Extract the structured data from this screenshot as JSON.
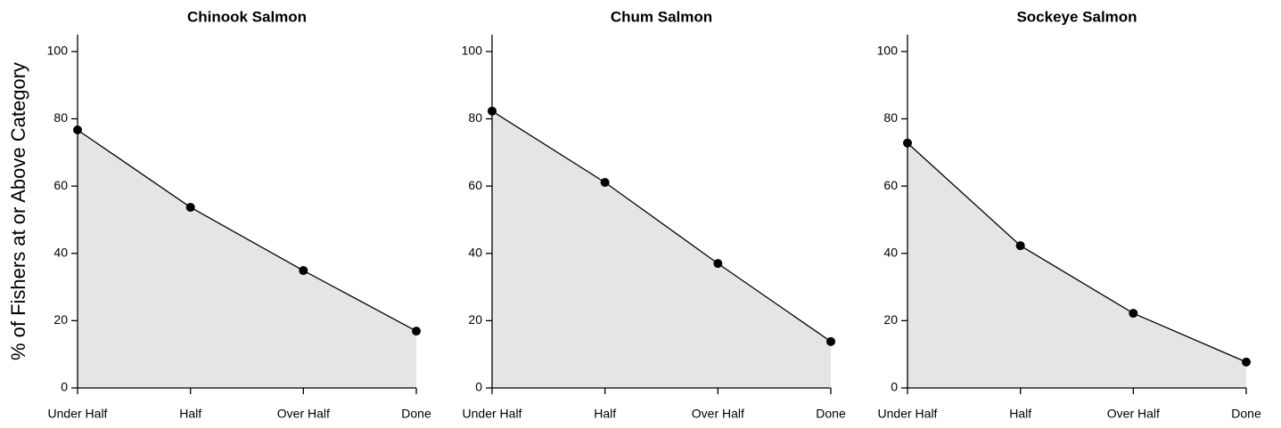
{
  "chart_data": [
    {
      "type": "area",
      "title": "Chinook Salmon",
      "ylabel": "% of Fishers at or Above Category",
      "categories": [
        "Under Half",
        "Half",
        "Over Half",
        "Done"
      ],
      "values": [
        76.7,
        53.7,
        34.9,
        16.9
      ],
      "color": "#e5e5e5",
      "line_color": "#000000",
      "ylim": [
        0,
        105
      ],
      "yticks": [
        0,
        20,
        40,
        60,
        80,
        100
      ]
    },
    {
      "type": "area",
      "title": "Chum Salmon",
      "categories": [
        "Under Half",
        "Half",
        "Over Half",
        "Done"
      ],
      "values": [
        82.3,
        61.1,
        37.0,
        13.8
      ],
      "color": "#e5e5e5",
      "line_color": "#000000",
      "ylim": [
        0,
        105
      ],
      "yticks": [
        0,
        20,
        40,
        60,
        80,
        100
      ]
    },
    {
      "type": "area",
      "title": "Sockeye Salmon",
      "categories": [
        "Under Half",
        "Half",
        "Over Half",
        "Done"
      ],
      "values": [
        72.8,
        42.3,
        22.2,
        7.7
      ],
      "color": "#e5e5e5",
      "line_color": "#000000",
      "ylim": [
        0,
        105
      ],
      "yticks": [
        0,
        20,
        40,
        60,
        80,
        100
      ]
    }
  ]
}
